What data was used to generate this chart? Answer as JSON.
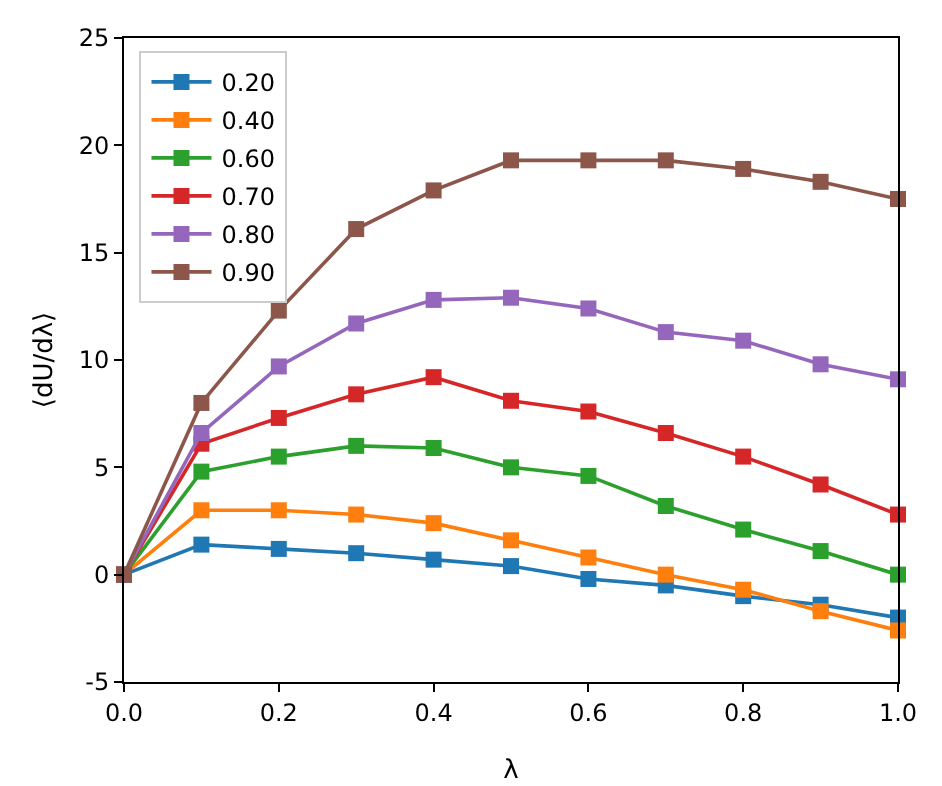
{
  "chart_data": {
    "type": "line",
    "xlabel": "λ",
    "ylabel": "⟨dU/dλ⟩",
    "x": [
      0,
      0.1,
      0.2,
      0.3,
      0.4,
      0.5,
      0.6,
      0.7,
      0.8,
      0.9,
      1.0
    ],
    "series": [
      {
        "name": "0.20",
        "color": "#1f77b4",
        "values": [
          0,
          1.4,
          1.2,
          1.0,
          0.7,
          0.4,
          -0.2,
          -0.5,
          -1.0,
          -1.4,
          -2.0
        ]
      },
      {
        "name": "0.40",
        "color": "#ff7f0e",
        "values": [
          0,
          3.0,
          3.0,
          2.8,
          2.4,
          1.6,
          0.8,
          0.0,
          -0.7,
          -1.7,
          -2.6
        ]
      },
      {
        "name": "0.60",
        "color": "#2ca02c",
        "values": [
          0,
          4.8,
          5.5,
          6.0,
          5.9,
          5.0,
          4.6,
          3.2,
          2.1,
          1.1,
          0.0
        ]
      },
      {
        "name": "0.70",
        "color": "#d62728",
        "values": [
          0,
          6.1,
          7.3,
          8.4,
          9.2,
          8.1,
          7.6,
          6.6,
          5.5,
          4.2,
          2.8
        ]
      },
      {
        "name": "0.80",
        "color": "#9467bd",
        "values": [
          0,
          6.6,
          9.7,
          11.7,
          12.8,
          12.9,
          12.4,
          11.3,
          10.9,
          9.8,
          9.1
        ]
      },
      {
        "name": "0.90",
        "color": "#8c564b",
        "values": [
          0,
          8.0,
          12.3,
          16.1,
          17.9,
          19.3,
          19.3,
          19.3,
          18.9,
          18.3,
          17.5
        ]
      }
    ],
    "xlim": [
      0,
      1
    ],
    "xticks": [
      {
        "value": 0,
        "label": "0.0"
      },
      {
        "value": 0.2,
        "label": "0.2"
      },
      {
        "value": 0.4,
        "label": "0.4"
      },
      {
        "value": 0.6,
        "label": "0.6"
      },
      {
        "value": 0.8,
        "label": "0.8"
      },
      {
        "value": 1,
        "label": "1.0"
      }
    ],
    "ylim": [
      -5,
      25
    ],
    "yticks": [
      -5,
      0,
      5,
      10,
      15,
      20,
      25
    ],
    "legend": "top left",
    "marker": "square",
    "line_style": "solid"
  }
}
